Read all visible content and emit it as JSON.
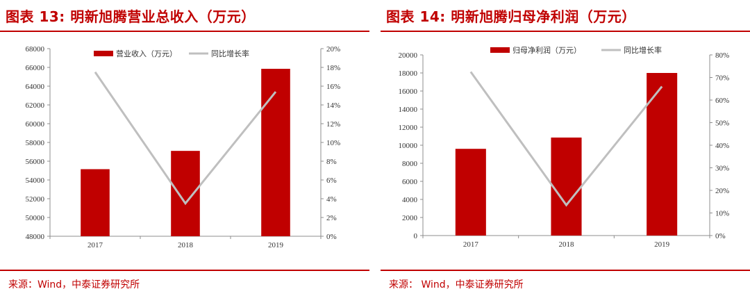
{
  "charts": [
    {
      "title": "图表 13:  明新旭腾营业总收入（万元）",
      "source": "来源：Wind，中泰证券研究所",
      "chart_data": {
        "type": "bar",
        "categories": [
          "2017",
          "2018",
          "2019"
        ],
        "series": [
          {
            "name": "营业收入（万元）",
            "type": "bar",
            "axis": "left",
            "color": "#c00000",
            "values": [
              55150,
              57100,
              65850
            ]
          },
          {
            "name": "同比增长率",
            "type": "line",
            "axis": "right",
            "color": "#bfbfbf",
            "values": [
              17.5,
              3.5,
              15.4
            ]
          }
        ],
        "ylim": [
          48000,
          68000
        ],
        "yticks": [
          "48000",
          "50000",
          "52000",
          "54000",
          "56000",
          "58000",
          "60000",
          "62000",
          "64000",
          "66000",
          "68000"
        ],
        "y2lim": [
          0,
          20
        ],
        "y2ticks": [
          "0%",
          "2%",
          "4%",
          "6%",
          "8%",
          "10%",
          "12%",
          "14%",
          "16%",
          "18%",
          "20%"
        ],
        "legend": "top-center",
        "grid": false
      }
    },
    {
      "title": "图表 14:  明新旭腾归母净利润（万元）",
      "source": "来源：  Wind，中泰证券研究所",
      "chart_data": {
        "type": "bar",
        "categories": [
          "2017",
          "2018",
          "2019"
        ],
        "series": [
          {
            "name": "归母净利润（万元）",
            "type": "bar",
            "axis": "left",
            "color": "#c00000",
            "values": [
              9600,
              10850,
              18000
            ]
          },
          {
            "name": "同比增长率",
            "type": "line",
            "axis": "right",
            "color": "#bfbfbf",
            "values": [
              72.5,
              13.5,
              66
            ]
          }
        ],
        "ylim": [
          0,
          20000
        ],
        "yticks": [
          "0",
          "2000",
          "4000",
          "6000",
          "8000",
          "10000",
          "12000",
          "14000",
          "16000",
          "18000",
          "20000"
        ],
        "y2lim": [
          0,
          80
        ],
        "y2ticks": [
          "0%",
          "10%",
          "20%",
          "30%",
          "40%",
          "50%",
          "60%",
          "70%",
          "80%"
        ],
        "legend": "top-center",
        "grid": false
      }
    }
  ]
}
